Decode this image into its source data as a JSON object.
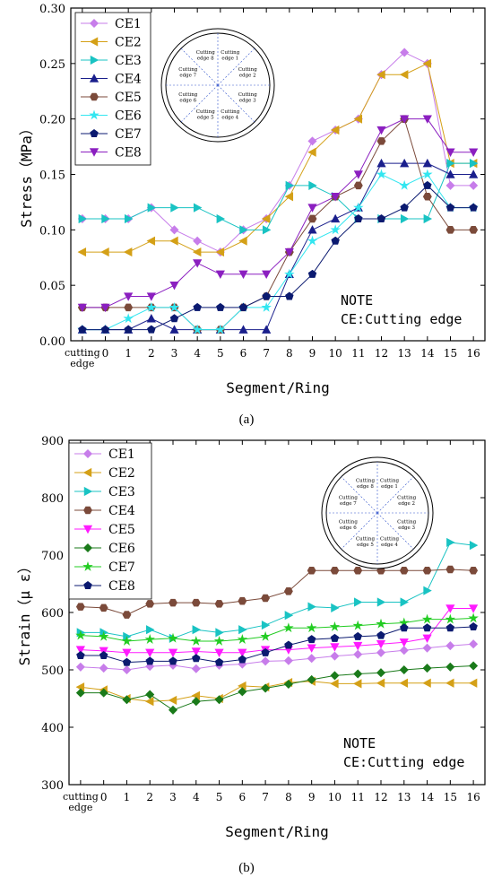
{
  "panels": [
    {
      "label": "(a)"
    },
    {
      "label": "(b)"
    }
  ],
  "chart_data": [
    {
      "type": "line",
      "xlabel": "Segment/Ring",
      "ylabel": "Stress（MPa）",
      "ylim": [
        0,
        0.3
      ],
      "yticks": [
        "0.00",
        "0.05",
        "0.10",
        "0.15",
        "0.20",
        "0.25",
        "0.30"
      ],
      "categories": [
        "cutting edge",
        "0",
        "1",
        "2",
        "3",
        "4",
        "5",
        "6",
        "7",
        "8",
        "9",
        "10",
        "11",
        "12",
        "13",
        "14",
        "15",
        "16"
      ],
      "legend_position": "top-left",
      "note": [
        "NOTE",
        "CE:Cutting edge"
      ],
      "inset": {
        "labels": [
          "Cutting edge 1",
          "Cutting edge 2",
          "Cutting edge 3",
          "Cutting edge 4",
          "Cutting edge 5",
          "Cutting edge 6",
          "Cutting edge 7",
          "Cutting edge 8"
        ]
      },
      "series": [
        {
          "name": "CE1",
          "color": "#c77dea",
          "marker": "diamond",
          "values": [
            0.11,
            0.11,
            0.11,
            0.12,
            0.1,
            0.09,
            0.08,
            0.1,
            0.11,
            0.14,
            0.18,
            0.19,
            0.2,
            0.24,
            0.26,
            0.25,
            0.14,
            0.14
          ]
        },
        {
          "name": "CE2",
          "color": "#d4a017",
          "marker": "triangle-left",
          "values": [
            0.08,
            0.08,
            0.08,
            0.09,
            0.09,
            0.08,
            0.08,
            0.09,
            0.11,
            0.13,
            0.17,
            0.19,
            0.2,
            0.24,
            0.24,
            0.25,
            0.16,
            0.16
          ]
        },
        {
          "name": "CE3",
          "color": "#19c3c3",
          "marker": "triangle-right",
          "values": [
            0.11,
            0.11,
            0.11,
            0.12,
            0.12,
            0.12,
            0.11,
            0.1,
            0.1,
            0.14,
            0.14,
            0.13,
            0.11,
            0.11,
            0.11,
            0.11,
            0.16,
            0.16
          ]
        },
        {
          "name": "CE4",
          "color": "#1a1f8c",
          "marker": "triangle-up",
          "values": [
            0.01,
            0.01,
            0.01,
            0.02,
            0.01,
            0.01,
            0.01,
            0.01,
            0.01,
            0.06,
            0.1,
            0.11,
            0.12,
            0.16,
            0.16,
            0.16,
            0.15,
            0.15
          ]
        },
        {
          "name": "CE5",
          "color": "#7b4a3a",
          "marker": "hexagon",
          "values": [
            0.03,
            0.03,
            0.03,
            0.03,
            0.03,
            0.01,
            0.01,
            0.03,
            0.04,
            0.08,
            0.11,
            0.13,
            0.14,
            0.18,
            0.2,
            0.13,
            0.1,
            0.1
          ]
        },
        {
          "name": "CE6",
          "color": "#33e6f0",
          "marker": "star",
          "values": [
            0.01,
            0.01,
            0.02,
            0.03,
            0.03,
            0.01,
            0.01,
            0.03,
            0.03,
            0.06,
            0.09,
            0.1,
            0.12,
            0.15,
            0.14,
            0.15,
            0.12,
            0.12
          ]
        },
        {
          "name": "CE7",
          "color": "#0b1a70",
          "marker": "pentagon",
          "values": [
            0.01,
            0.01,
            0.01,
            0.01,
            0.02,
            0.03,
            0.03,
            0.03,
            0.04,
            0.04,
            0.06,
            0.09,
            0.11,
            0.11,
            0.12,
            0.14,
            0.12,
            0.12
          ]
        },
        {
          "name": "CE8",
          "color": "#8b1fc0",
          "marker": "triangle-down",
          "values": [
            0.03,
            0.03,
            0.04,
            0.04,
            0.05,
            0.07,
            0.06,
            0.06,
            0.06,
            0.08,
            0.12,
            0.13,
            0.15,
            0.19,
            0.2,
            0.2,
            0.17,
            0.17
          ]
        }
      ]
    },
    {
      "type": "line",
      "xlabel": "Segment/Ring",
      "ylabel": "Strain（μ ε）",
      "ylim": [
        300,
        900
      ],
      "yticks": [
        "300",
        "400",
        "500",
        "600",
        "700",
        "800",
        "900"
      ],
      "categories": [
        "cutting edge",
        "0",
        "1",
        "2",
        "3",
        "4",
        "5",
        "6",
        "7",
        "8",
        "9",
        "10",
        "11",
        "12",
        "13",
        "14",
        "15",
        "16"
      ],
      "legend_position": "top-left",
      "note": [
        "NOTE",
        "CE:Cutting edge"
      ],
      "inset": {
        "labels": [
          "Cutting edge 1",
          "Cutting edge 2",
          "Cutting edge 3",
          "Cutting edge 4",
          "Cutting edge 5",
          "Cutting edge 6",
          "Cutting edge 7",
          "Cutting edge 8"
        ]
      },
      "series": [
        {
          "name": "CE1",
          "color": "#c77dea",
          "marker": "diamond",
          "values": [
            505,
            503,
            500,
            506,
            508,
            502,
            508,
            510,
            515,
            516,
            520,
            524,
            527,
            530,
            534,
            538,
            542,
            545
          ]
        },
        {
          "name": "CE2",
          "color": "#d4a017",
          "marker": "triangle-left",
          "values": [
            470,
            465,
            450,
            445,
            447,
            455,
            450,
            472,
            470,
            478,
            480,
            476,
            476,
            477,
            477,
            477,
            477,
            477
          ]
        },
        {
          "name": "CE3",
          "color": "#19c3c3",
          "marker": "triangle-right",
          "values": [
            565,
            565,
            558,
            570,
            555,
            570,
            565,
            570,
            578,
            595,
            610,
            608,
            618,
            618,
            618,
            638,
            722,
            717
          ]
        },
        {
          "name": "CE4",
          "color": "#7b4a3a",
          "marker": "hexagon",
          "values": [
            610,
            608,
            596,
            615,
            617,
            617,
            615,
            620,
            625,
            637,
            673,
            673,
            673,
            673,
            673,
            673,
            675,
            673
          ]
        },
        {
          "name": "CE5",
          "color": "#ff1aff",
          "marker": "triangle-down",
          "values": [
            535,
            533,
            530,
            530,
            530,
            532,
            530,
            530,
            535,
            535,
            538,
            540,
            542,
            545,
            548,
            555,
            607,
            607
          ]
        },
        {
          "name": "CE6",
          "color": "#1a7a1a",
          "marker": "diamond",
          "values": [
            460,
            460,
            448,
            457,
            430,
            445,
            448,
            462,
            468,
            475,
            483,
            490,
            493,
            495,
            500,
            503,
            505,
            507
          ]
        },
        {
          "name": "CE7",
          "color": "#22cc22",
          "marker": "star",
          "values": [
            560,
            558,
            550,
            553,
            555,
            550,
            550,
            553,
            558,
            573,
            573,
            575,
            577,
            580,
            582,
            588,
            588,
            590
          ]
        },
        {
          "name": "CE8",
          "color": "#0b1a70",
          "marker": "pentagon",
          "values": [
            525,
            525,
            513,
            515,
            515,
            520,
            513,
            518,
            530,
            543,
            553,
            555,
            558,
            560,
            573,
            573,
            573,
            575
          ]
        }
      ]
    }
  ]
}
